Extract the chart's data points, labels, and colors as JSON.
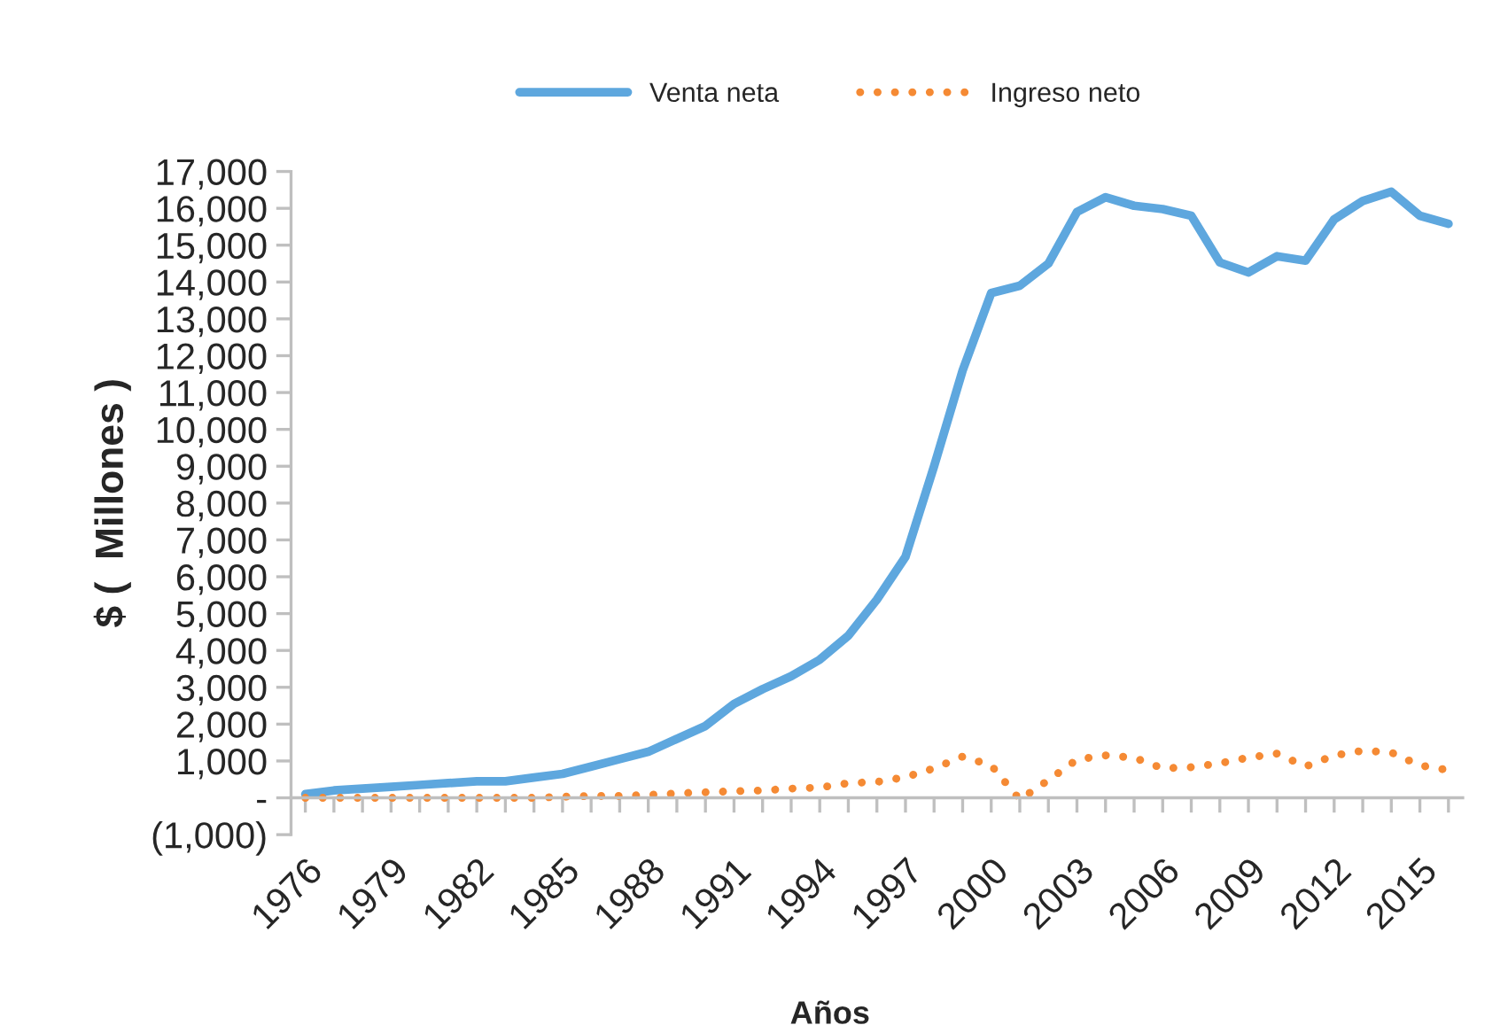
{
  "chart_data": {
    "type": "line",
    "xlabel": "Años",
    "ylabel": "$ (  Millones )",
    "legend": "top",
    "grid": false,
    "marker": "none",
    "x": [
      1976,
      1977,
      1978,
      1979,
      1980,
      1981,
      1982,
      1983,
      1984,
      1985,
      1986,
      1987,
      1988,
      1989,
      1990,
      1991,
      1992,
      1993,
      1994,
      1995,
      1996,
      1997,
      1998,
      1999,
      2000,
      2001,
      2002,
      2003,
      2004,
      2005,
      2006,
      2007,
      2008,
      2009,
      2010,
      2011,
      2012,
      2013,
      2014,
      2015,
      2016
    ],
    "series": [
      {
        "name": "Venta neta",
        "color": "#5ea7de",
        "line_style": "solid",
        "values": [
          100,
          200,
          250,
          300,
          350,
          400,
          450,
          450,
          550,
          650,
          850,
          1050,
          1250,
          1600,
          1950,
          2550,
          2950,
          3300,
          3750,
          4400,
          5380,
          6540,
          9000,
          11600,
          13700,
          13900,
          14500,
          15900,
          16300,
          16070,
          15980,
          15800,
          14530,
          14260,
          14700,
          14580,
          15700,
          16200,
          16450,
          15800,
          15580
        ]
      },
      {
        "name": "Ingreso neto",
        "color": "#f58a34",
        "line_style": "dotted",
        "values": [
          0,
          0,
          0,
          0,
          0,
          0,
          0,
          0,
          0,
          30,
          50,
          50,
          80,
          120,
          150,
          180,
          200,
          250,
          280,
          400,
          430,
          560,
          800,
          1120,
          880,
          -50,
          480,
          1040,
          1150,
          1090,
          800,
          830,
          940,
          1090,
          1200,
          850,
          1150,
          1280,
          1230,
          880,
          750
        ]
      }
    ],
    "xlim": [
      1975.5,
      2016.5
    ],
    "xticks": [
      {
        "value": 1976,
        "label": "1976"
      },
      {
        "value": 1977,
        "label": null
      },
      {
        "value": 1978,
        "label": null
      },
      {
        "value": 1979,
        "label": "1979"
      },
      {
        "value": 1980,
        "label": null
      },
      {
        "value": 1981,
        "label": null
      },
      {
        "value": 1982,
        "label": "1982"
      },
      {
        "value": 1983,
        "label": null
      },
      {
        "value": 1984,
        "label": null
      },
      {
        "value": 1985,
        "label": "1985"
      },
      {
        "value": 1986,
        "label": null
      },
      {
        "value": 1987,
        "label": null
      },
      {
        "value": 1988,
        "label": "1988"
      },
      {
        "value": 1989,
        "label": null
      },
      {
        "value": 1990,
        "label": null
      },
      {
        "value": 1991,
        "label": "1991"
      },
      {
        "value": 1992,
        "label": null
      },
      {
        "value": 1993,
        "label": null
      },
      {
        "value": 1994,
        "label": "1994"
      },
      {
        "value": 1995,
        "label": null
      },
      {
        "value": 1996,
        "label": null
      },
      {
        "value": 1997,
        "label": "1997"
      },
      {
        "value": 1998,
        "label": null
      },
      {
        "value": 1999,
        "label": null
      },
      {
        "value": 2000,
        "label": "2000"
      },
      {
        "value": 2001,
        "label": null
      },
      {
        "value": 2002,
        "label": null
      },
      {
        "value": 2003,
        "label": "2003"
      },
      {
        "value": 2004,
        "label": null
      },
      {
        "value": 2005,
        "label": null
      },
      {
        "value": 2006,
        "label": "2006"
      },
      {
        "value": 2007,
        "label": null
      },
      {
        "value": 2008,
        "label": null
      },
      {
        "value": 2009,
        "label": "2009"
      },
      {
        "value": 2010,
        "label": null
      },
      {
        "value": 2011,
        "label": null
      },
      {
        "value": 2012,
        "label": "2012"
      },
      {
        "value": 2013,
        "label": null
      },
      {
        "value": 2014,
        "label": null
      },
      {
        "value": 2015,
        "label": "2015"
      },
      {
        "value": 2016,
        "label": null
      }
    ],
    "ylim": [
      -1000,
      17000
    ],
    "yticks": [
      {
        "value": -1000,
        "label": "(1,000)"
      },
      {
        "value": 0,
        "label": "-"
      },
      {
        "value": 1000,
        "label": "1,000"
      },
      {
        "value": 2000,
        "label": "2,000"
      },
      {
        "value": 3000,
        "label": "3,000"
      },
      {
        "value": 4000,
        "label": "4,000"
      },
      {
        "value": 5000,
        "label": "5,000"
      },
      {
        "value": 6000,
        "label": "6,000"
      },
      {
        "value": 7000,
        "label": "7,000"
      },
      {
        "value": 8000,
        "label": "8,000"
      },
      {
        "value": 9000,
        "label": "9,000"
      },
      {
        "value": 10000,
        "label": "10,000"
      },
      {
        "value": 11000,
        "label": "11,000"
      },
      {
        "value": 12000,
        "label": "12,000"
      },
      {
        "value": 13000,
        "label": "13,000"
      },
      {
        "value": 14000,
        "label": "14,000"
      },
      {
        "value": 15000,
        "label": "15,000"
      },
      {
        "value": 16000,
        "label": "16,000"
      },
      {
        "value": 17000,
        "label": "17,000"
      }
    ]
  }
}
